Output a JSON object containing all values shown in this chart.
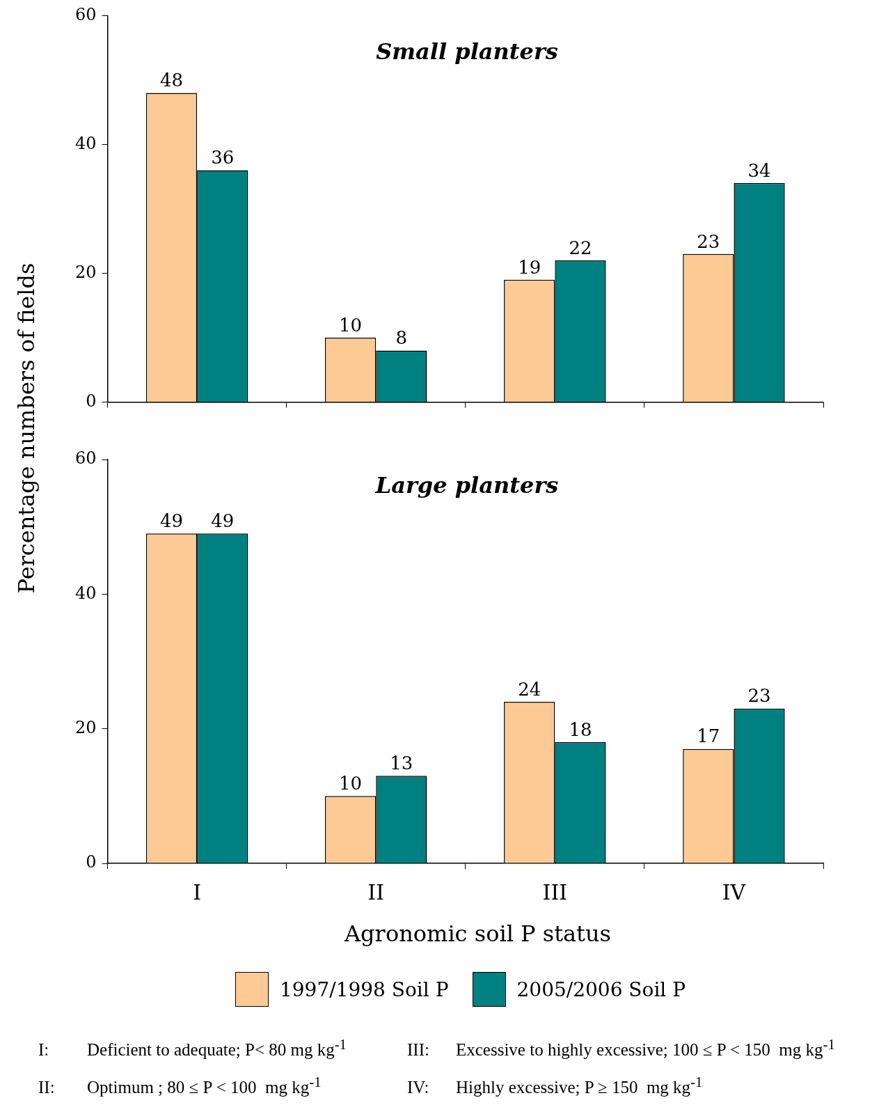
{
  "chart_data": [
    {
      "type": "bar",
      "title": "Small planters",
      "ylabel": "Percentage numbers of fields",
      "categories": [
        null,
        null,
        null,
        null
      ],
      "series": [
        {
          "color": "#fdca96",
          "values": [
            48,
            10,
            19,
            23
          ]
        },
        {
          "color": "#008080",
          "values": [
            36,
            8,
            22,
            34
          ]
        }
      ],
      "ylim": [
        0,
        60
      ],
      "yticks": [
        0,
        20,
        40,
        60
      ],
      "grid": false,
      "legend": false,
      "data_labels": true,
      "tick_labels": "y"
    },
    {
      "type": "bar",
      "title": "Large planters",
      "xlabel": "Agronomic soil P status",
      "categories": [
        "I",
        "II",
        "III",
        "IV"
      ],
      "series": [
        {
          "name": "1997/1998 Soil P",
          "color": "#fdca96",
          "values": [
            49,
            10,
            24,
            17
          ]
        },
        {
          "name": "2005/2006 Soil P",
          "color": "#008080",
          "values": [
            49,
            13,
            18,
            23
          ]
        }
      ],
      "ylim": [
        0,
        60
      ],
      "yticks": [
        0,
        20,
        40,
        60
      ],
      "grid": false,
      "legend": "bottom",
      "data_labels": true,
      "annotations": [
        "I:\tDeficient to adequate; P< 80 mg kg$^{-1}$",
        "III:\tExcessive to highly excessive; 100 ≤ P < 150  mg kg$^{-1}$",
        "II:\tOptimum ; 80 ≤ P < 100  mg kg$^{-1}$",
        "IV:\tHighly excessive; P ≥ 150  mg kg$^{-1}$"
      ]
    }
  ]
}
